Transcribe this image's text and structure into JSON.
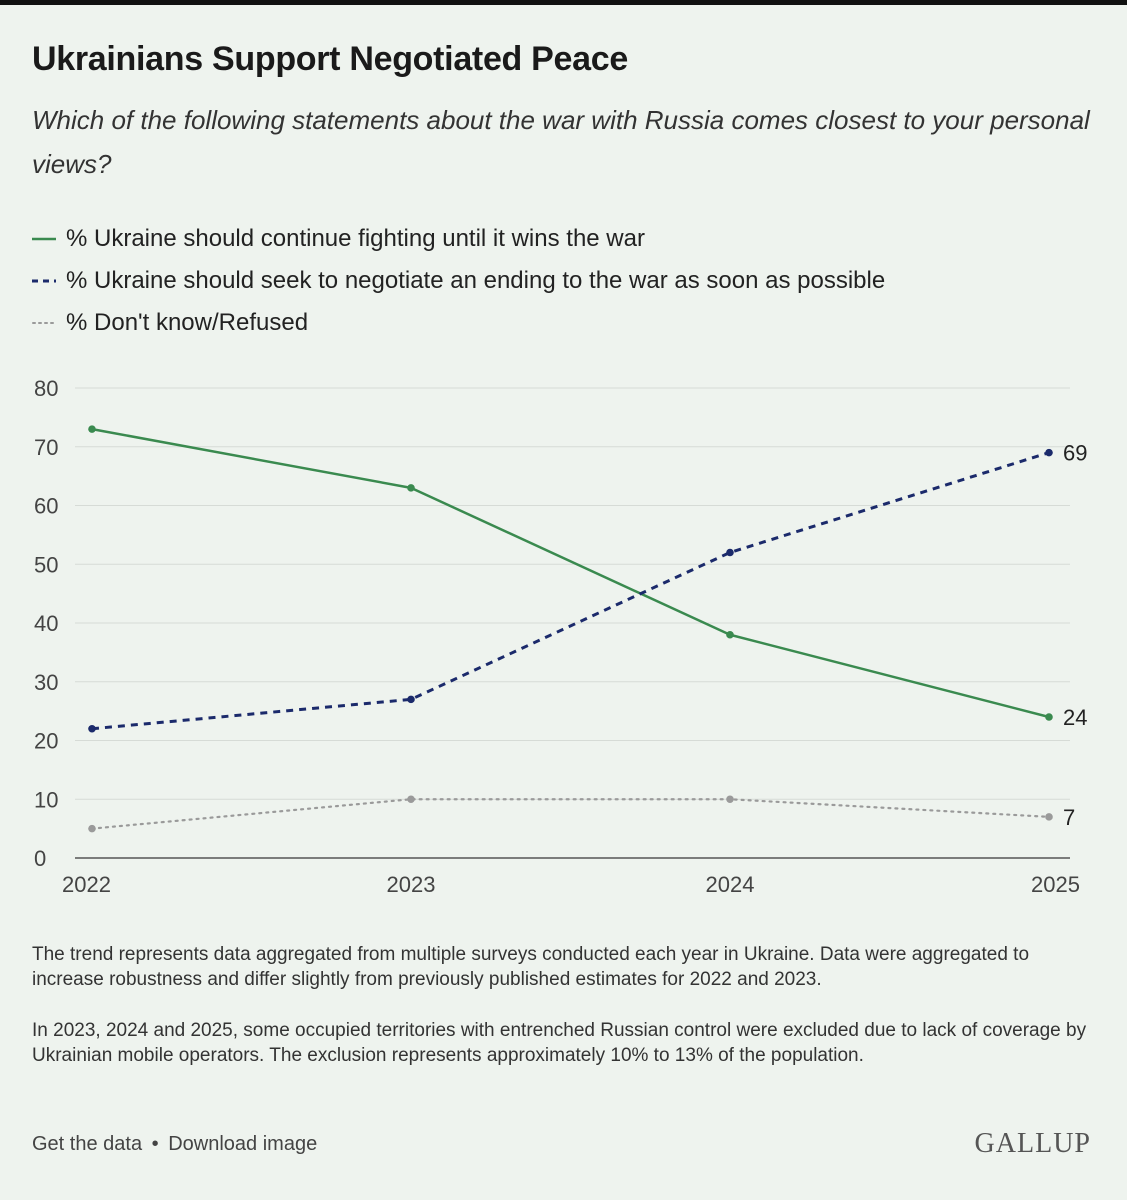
{
  "header": {
    "title": "Ukrainians Support Negotiated Peace",
    "subtitle": "Which of the following statements about the war with Russia comes closest to your personal views?"
  },
  "colors": {
    "fight": "#3a8a4f",
    "negotiate": "#1b2a6b",
    "dontknow": "#9a9a9a",
    "grid": "#d6dbd6",
    "axis": "#555555"
  },
  "chart_data": {
    "type": "line",
    "x": [
      "2022",
      "2023",
      "2024",
      "2025"
    ],
    "ylim": [
      0,
      80
    ],
    "yticks": [
      0,
      10,
      20,
      30,
      40,
      50,
      60,
      70,
      80
    ],
    "grid": true,
    "legend_position": "top-left",
    "series": [
      {
        "name": "% Ukraine should continue fighting until it wins the war",
        "values": [
          73,
          63,
          38,
          24
        ],
        "style": "solid",
        "color": "#3a8a4f",
        "end_label": "24"
      },
      {
        "name": "% Ukraine should seek to negotiate an ending to the war as soon as possible",
        "values": [
          22,
          27,
          52,
          69
        ],
        "style": "dashed",
        "color": "#1b2a6b",
        "end_label": "69"
      },
      {
        "name": "% Don't know/Refused",
        "values": [
          5,
          10,
          10,
          7
        ],
        "style": "dotted",
        "color": "#9a9a9a",
        "end_label": "7"
      }
    ]
  },
  "notes": {
    "note1": "The trend represents data aggregated from multiple surveys conducted each year in Ukraine. Data were aggregated to increase robustness and differ slightly from previously published estimates for 2022 and 2023.",
    "note2": "In 2023, 2024 and 2025, some occupied territories with entrenched Russian control were excluded due to lack of coverage by Ukrainian mobile operators. The exclusion represents approximately 10% to 13% of the population."
  },
  "footer": {
    "get_data": "Get the data",
    "separator": "•",
    "download": "Download image",
    "brand": "GALLUP"
  }
}
